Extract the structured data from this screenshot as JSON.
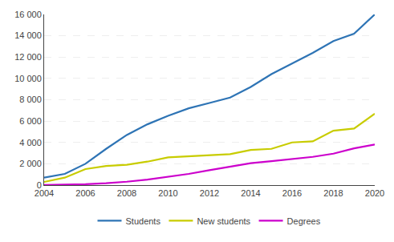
{
  "chart_data": {
    "type": "line",
    "x": [
      2004,
      2005,
      2006,
      2007,
      2008,
      2009,
      2010,
      2011,
      2012,
      2013,
      2014,
      2015,
      2016,
      2017,
      2018,
      2019,
      2020
    ],
    "series": [
      {
        "name": "Students",
        "color": "#2E74B5",
        "values": [
          700,
          1050,
          2000,
          3400,
          4700,
          5700,
          6500,
          7200,
          7700,
          8200,
          9200,
          10400,
          11400,
          12400,
          13500,
          14200,
          16000
        ]
      },
      {
        "name": "New students",
        "color": "#C8CC00",
        "values": [
          300,
          700,
          1500,
          1800,
          1900,
          2200,
          2600,
          2700,
          2750,
          2900,
          3300,
          3400,
          4000,
          4100,
          5100,
          5300,
          6700
        ]
      },
      {
        "name": "Degrees",
        "color": "#CC00CC",
        "values": [
          20,
          40,
          90,
          180,
          320,
          520,
          780,
          1050,
          1400,
          1750,
          2050,
          2250,
          2450,
          2650,
          2950,
          3450,
          3800
        ]
      }
    ],
    "xlim": [
      2004,
      2020
    ],
    "xticks": [
      2004,
      2006,
      2008,
      2010,
      2012,
      2014,
      2016,
      2018,
      2020
    ],
    "ylim": [
      0,
      16000
    ],
    "yticks": [
      0,
      {
        "value": 2000,
        "label": "2 000"
      },
      {
        "value": 4000,
        "label": "4 000"
      },
      {
        "value": 6000,
        "label": "6 000"
      },
      {
        "value": 8000,
        "label": "8 000"
      },
      {
        "value": 10000,
        "label": "10 000"
      },
      {
        "value": 12000,
        "label": "12 000"
      },
      {
        "value": 14000,
        "label": "14 000"
      },
      {
        "value": 16000,
        "label": "16 000"
      }
    ],
    "grid": "y",
    "legend": "bottom"
  }
}
